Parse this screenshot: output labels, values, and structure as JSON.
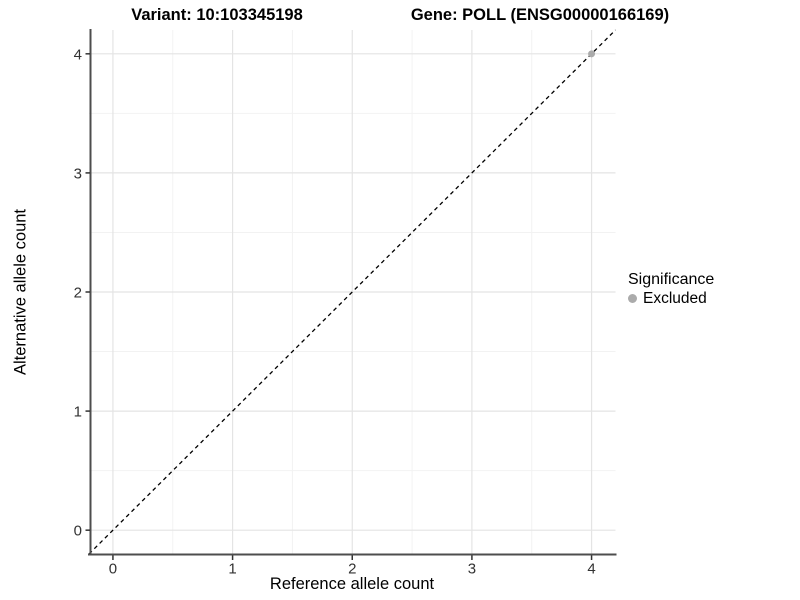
{
  "chart_data": {
    "type": "scatter",
    "title_left": "Variant: 10:103345198",
    "title_right": "Gene: POLL (ENSG00000166169)",
    "xlabel": "Reference allele count",
    "ylabel": "Alternative allele count",
    "xlim": [
      -0.2,
      4.2
    ],
    "ylim": [
      -0.2,
      4.2
    ],
    "x_ticks": [
      0,
      1,
      2,
      3,
      4
    ],
    "y_ticks": [
      0,
      1,
      2,
      3,
      4
    ],
    "grid": "major+minor",
    "dashed_identity_line": {
      "from": [
        -0.2,
        -0.2
      ],
      "to": [
        4.2,
        4.2
      ]
    },
    "series": [
      {
        "name": "Excluded",
        "color": "#ababab",
        "points": [
          [
            4,
            4
          ]
        ],
        "point_radius": 3.5
      }
    ],
    "legend": {
      "title": "Significance",
      "position": "right",
      "items": [
        {
          "label": "Excluded",
          "color": "#ababab"
        }
      ]
    },
    "colors": {
      "background": "#ffffff",
      "grid_major": "#e4e4e4",
      "grid_minor": "#f2f2f2",
      "axis_line": "#4d4d4d",
      "tick_mark": "#333333",
      "tick_text": "#333333",
      "identity_line": "#000000"
    }
  }
}
